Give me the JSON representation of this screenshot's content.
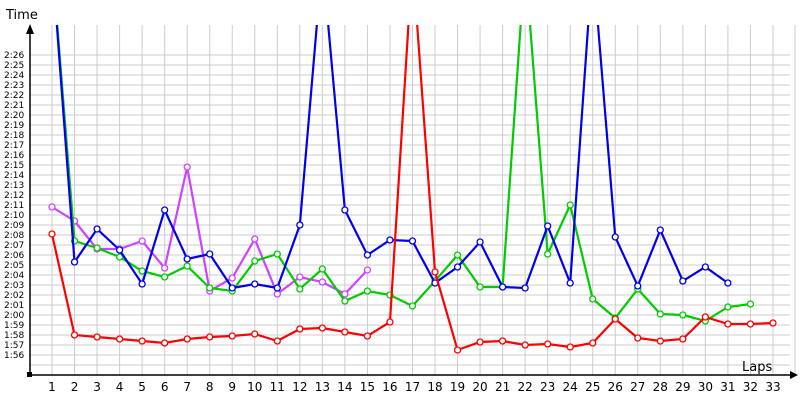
{
  "chart_data": {
    "type": "line",
    "title": "",
    "ylabel": "Time",
    "xlabel": "Laps",
    "grid": true,
    "legend": "none",
    "x": [
      1,
      2,
      3,
      4,
      5,
      6,
      7,
      8,
      9,
      10,
      11,
      12,
      13,
      14,
      15,
      16,
      17,
      18,
      19,
      20,
      21,
      22,
      23,
      24,
      25,
      26,
      27,
      28,
      29,
      30,
      31,
      32,
      33
    ],
    "y_ticks": [
      "2:26",
      "2:25",
      "2:24",
      "2:23",
      "2:22",
      "2:21",
      "2:20",
      "2:19",
      "2:18",
      "2:17",
      "2:16",
      "2:15",
      "2:14",
      "2:13",
      "2:12",
      "2:11",
      "2:10",
      "2:09",
      "2:08",
      "2:07",
      "2:06",
      "2:05",
      "2:04",
      "2:03",
      "2:02",
      "2:01",
      "2:00",
      "1:59",
      "1:58",
      "1:57",
      "1:56"
    ],
    "y_range_seconds": [
      114,
      147
    ],
    "y_unit": "seconds (m:ss)",
    "series": [
      {
        "name": "red",
        "color": "#ff0000",
        "values": [
          128.1,
          118.0,
          117.8,
          117.6,
          117.4,
          117.2,
          117.6,
          117.8,
          117.9,
          118.1,
          117.4,
          118.6,
          118.7,
          118.3,
          117.9,
          119.3,
          null,
          124.3,
          116.5,
          117.3,
          117.4,
          117.0,
          117.1,
          116.8,
          117.2,
          119.6,
          117.7,
          117.4,
          117.6,
          119.8,
          119.1,
          119.1,
          119.2
        ],
        "off_chart": {
          "17": "above"
        }
      },
      {
        "name": "green",
        "color": "#00cc00",
        "values": [
          null,
          127.4,
          126.7,
          125.8,
          124.4,
          123.8,
          124.9,
          122.7,
          122.4,
          125.4,
          126.1,
          122.6,
          124.6,
          121.4,
          122.4,
          122.0,
          120.9,
          123.4,
          126.0,
          122.8,
          122.8,
          null,
          126.1,
          131.0,
          121.6,
          119.7,
          122.6,
          120.1,
          120.0,
          119.4,
          120.8,
          121.1,
          null
        ],
        "off_chart": {
          "1": "above",
          "22": "above"
        }
      },
      {
        "name": "blue",
        "color": "#0000ee",
        "values": [
          null,
          125.3,
          128.6,
          126.5,
          123.1,
          130.5,
          125.6,
          126.1,
          122.7,
          123.1,
          122.7,
          129.0,
          null,
          130.5,
          126.0,
          127.5,
          127.4,
          123.2,
          124.8,
          127.3,
          122.8,
          122.7,
          128.9,
          123.2,
          null,
          127.8,
          122.9,
          128.5,
          123.4,
          124.8,
          123.2,
          null,
          null
        ],
        "off_chart": {
          "1": "above",
          "13": "above",
          "25": "above"
        }
      },
      {
        "name": "purple",
        "color": "#cc44ff",
        "values": [
          130.8,
          129.4,
          126.6,
          126.6,
          127.4,
          124.7,
          134.8,
          122.4,
          123.7,
          127.6,
          122.1,
          123.8,
          123.3,
          122.1,
          124.5,
          null,
          null,
          null,
          null,
          null,
          null,
          null,
          null,
          null,
          null,
          null,
          null,
          null,
          null,
          null,
          null,
          null,
          null
        ]
      }
    ]
  },
  "axes": {
    "y_label": "Time",
    "x_label": "Laps"
  }
}
